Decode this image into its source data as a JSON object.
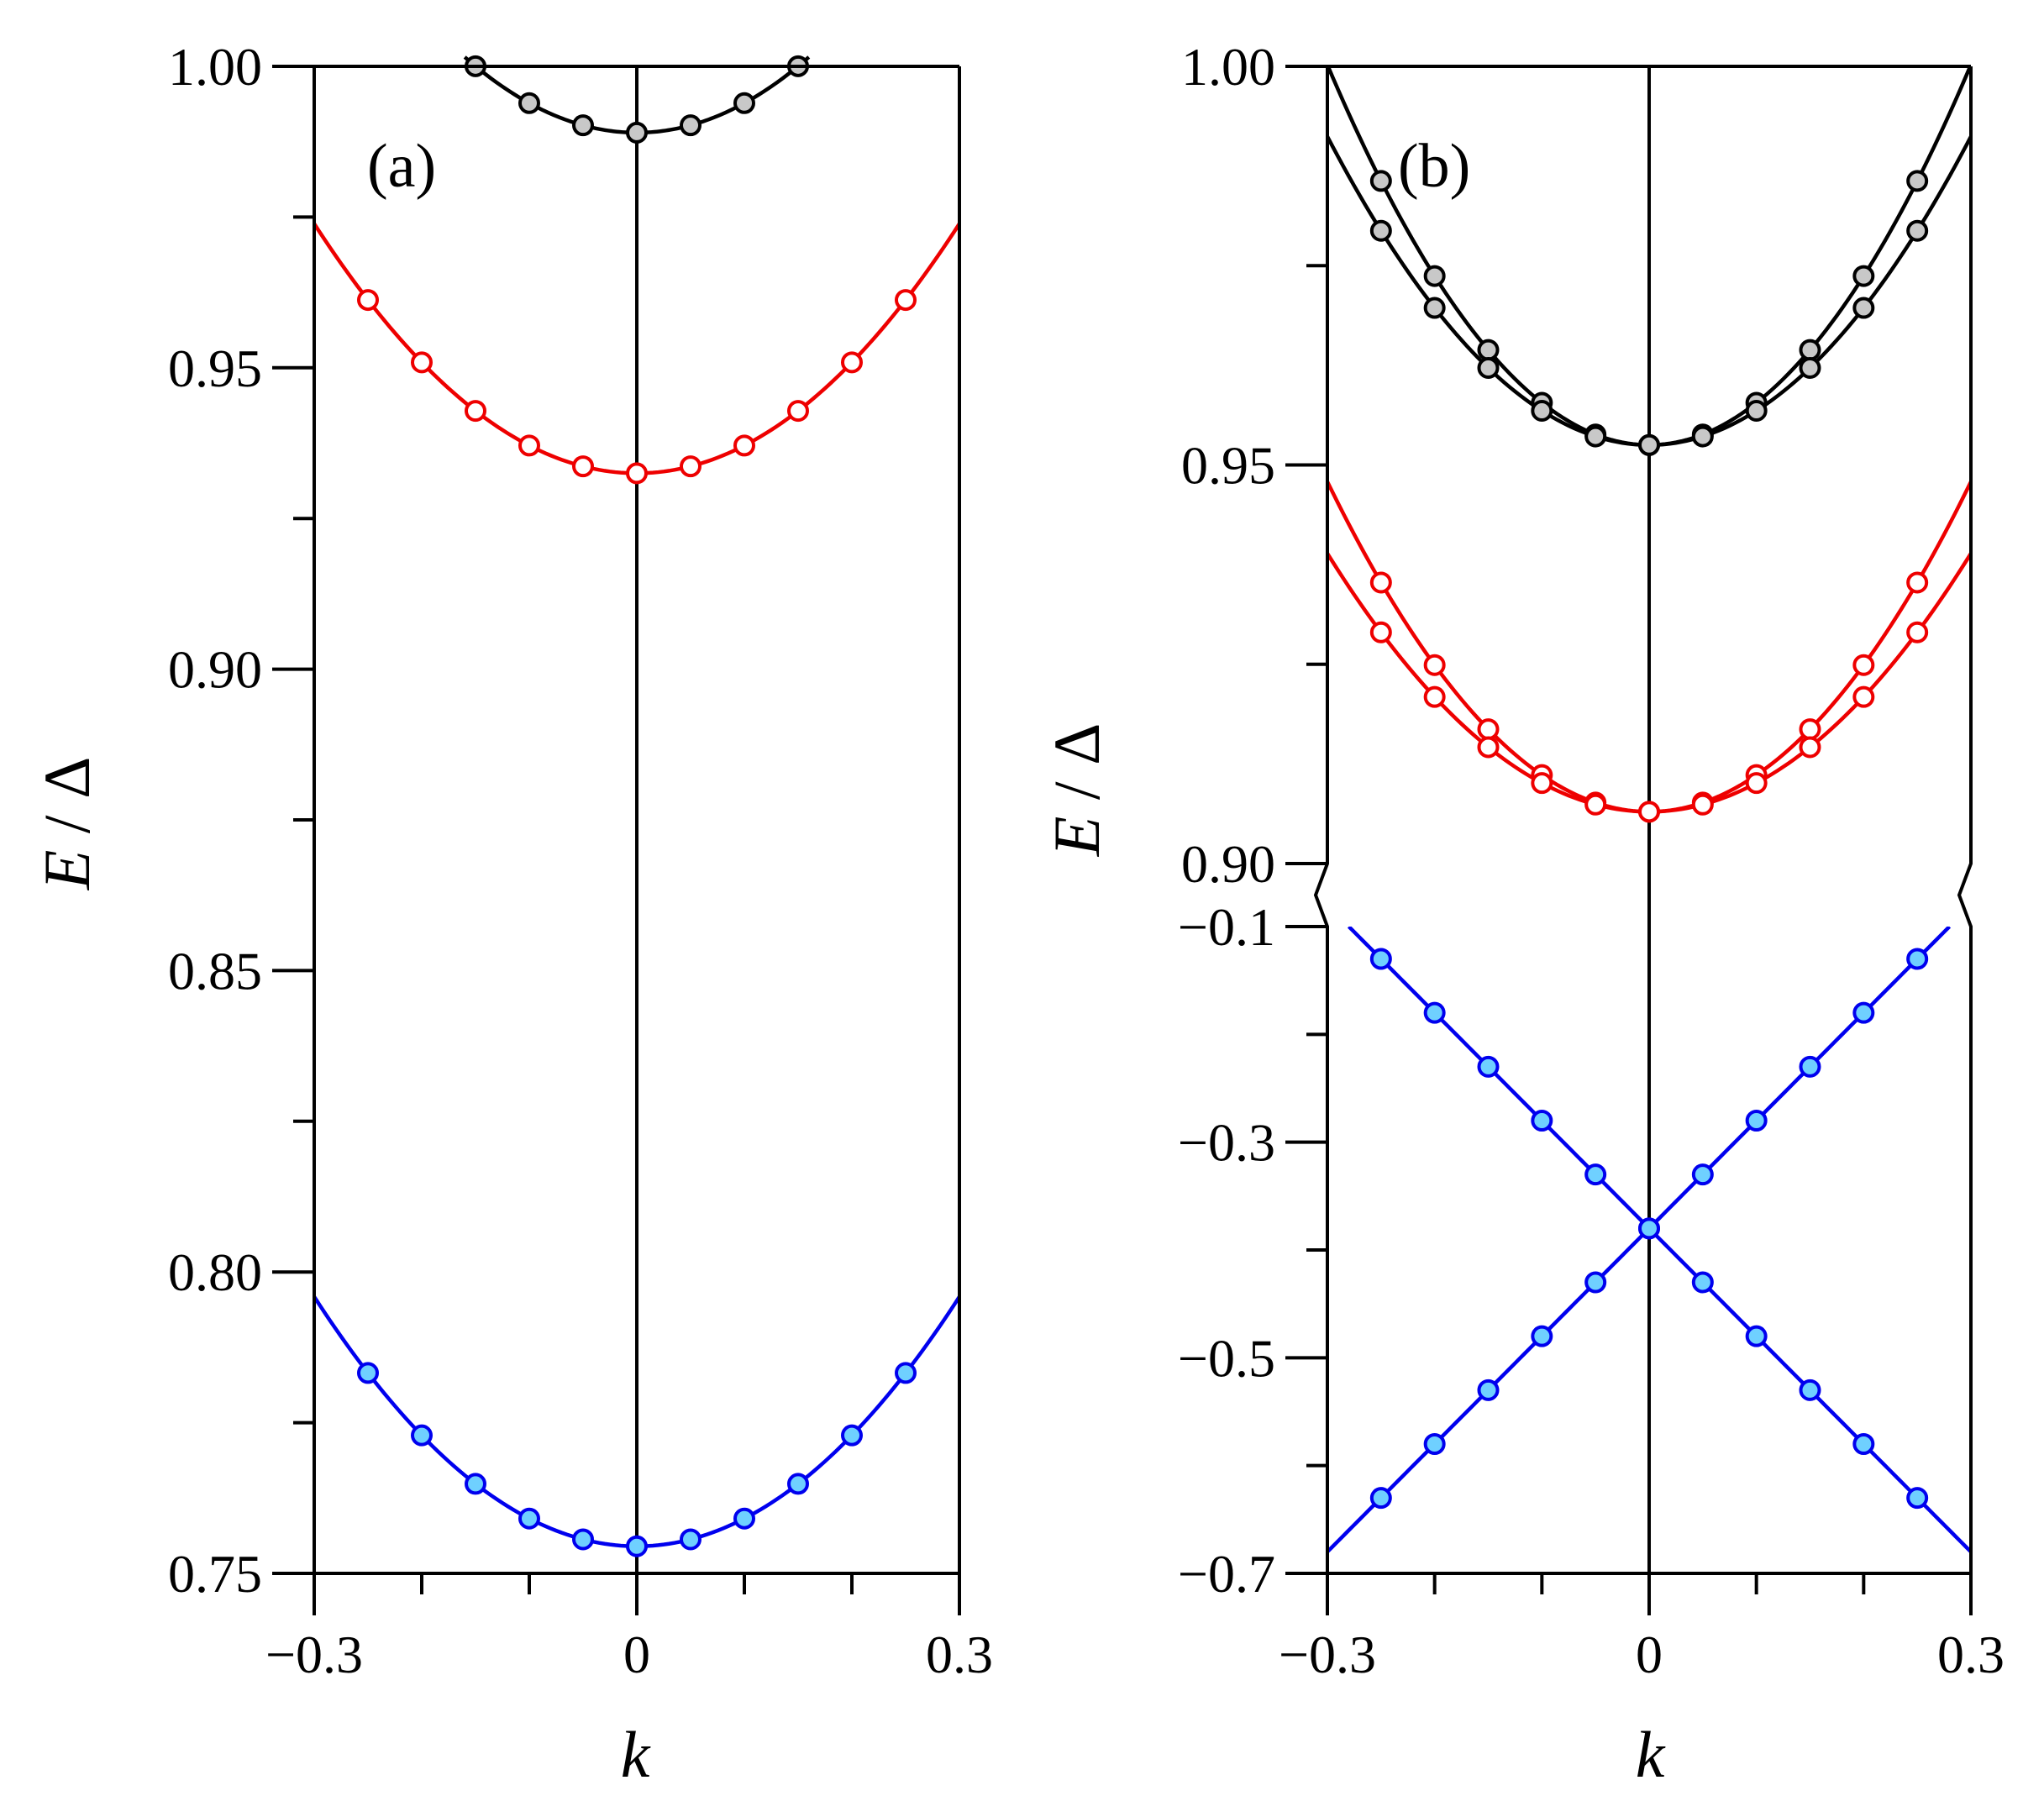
{
  "chart_data": [
    {
      "type": "line",
      "panel_label": "(a)",
      "xlabel": "k",
      "ylabel_italic": "E",
      "ylabel_rest": " / Δ",
      "xlim": [
        -0.3,
        0.3
      ],
      "ylim": [
        0.75,
        1.0
      ],
      "x_ticks": [
        {
          "value": -0.3,
          "label": "−0.3"
        },
        {
          "value": 0,
          "label": "0"
        },
        {
          "value": 0.3,
          "label": "0.3"
        }
      ],
      "x_minor_ticks": [
        -0.2,
        -0.1,
        0.1,
        0.2
      ],
      "y_ticks": [
        {
          "value": 1.0,
          "label": "1.00"
        },
        {
          "value": 0.95,
          "label": "0.95"
        },
        {
          "value": 0.9,
          "label": "0.90"
        },
        {
          "value": 0.85,
          "label": "0.85"
        },
        {
          "value": 0.8,
          "label": "0.80"
        },
        {
          "value": 0.75,
          "label": "0.75"
        }
      ],
      "y_minor_ticks": [
        0.975,
        0.925,
        0.875,
        0.825,
        0.775
      ],
      "series": [
        {
          "name": "black",
          "color": "#000000",
          "marker_fill": "#c8c8c8",
          "a": 0.989,
          "b": 0.49,
          "c": 0,
          "curve_range": [
            -0.16,
            0.16
          ],
          "marker_x": [
            -0.15,
            -0.1,
            -0.05,
            0,
            0.05,
            0.1,
            0.15
          ]
        },
        {
          "name": "red",
          "color": "#ee0000",
          "marker_fill": "#ffffff",
          "a": 0.9325,
          "b": 0.46,
          "c": 0,
          "curve_range": [
            -0.3,
            0.3
          ],
          "marker_x": [
            -0.25,
            -0.2,
            -0.15,
            -0.1,
            -0.05,
            0,
            0.05,
            0.1,
            0.15,
            0.2,
            0.25
          ]
        },
        {
          "name": "blue",
          "color": "#0000ee",
          "marker_fill": "#6fd0ff",
          "a": 0.7545,
          "b": 0.46,
          "c": 0,
          "curve_range": [
            -0.3,
            0.3
          ],
          "marker_x": [
            -0.25,
            -0.2,
            -0.15,
            -0.1,
            -0.05,
            0,
            0.05,
            0.1,
            0.15,
            0.2,
            0.25
          ]
        }
      ]
    },
    {
      "type": "line",
      "panel_label": "(b)",
      "xlabel": "k",
      "ylabel_italic": "E",
      "ylabel_rest": " / Δ",
      "xlim": [
        -0.3,
        0.3
      ],
      "broken_y_axis": true,
      "upper_ylim": [
        0.9,
        1.0
      ],
      "lower_ylim": [
        -0.7,
        -0.1
      ],
      "x_ticks": [
        {
          "value": -0.3,
          "label": "−0.3"
        },
        {
          "value": 0,
          "label": "0"
        },
        {
          "value": 0.3,
          "label": "0.3"
        }
      ],
      "x_minor_ticks": [
        -0.2,
        -0.1,
        0.1,
        0.2
      ],
      "upper_y_ticks": [
        {
          "value": 1.0,
          "label": "1.00"
        },
        {
          "value": 0.95,
          "label": "0.95"
        },
        {
          "value": 0.9,
          "label": "0.90"
        }
      ],
      "upper_y_minor_ticks": [
        0.975,
        0.925
      ],
      "lower_y_ticks": [
        {
          "value": -0.1,
          "label": "−0.1"
        },
        {
          "value": -0.3,
          "label": "−0.3"
        },
        {
          "value": -0.5,
          "label": "−0.5"
        },
        {
          "value": -0.7,
          "label": "−0.7"
        }
      ],
      "lower_y_minor_ticks": [
        -0.2,
        -0.4,
        -0.6
      ],
      "series": [
        {
          "name": "black-outer",
          "color": "#000000",
          "marker_fill": "#c8c8c8",
          "axis": "upper",
          "a": 0.9525,
          "b": 0.53,
          "c": 0,
          "curve_range": [
            -0.3,
            0.3
          ],
          "marker_x": [
            -0.25,
            -0.2,
            -0.15,
            -0.1,
            -0.05,
            0,
            0.05,
            0.1,
            0.15,
            0.2,
            0.25
          ]
        },
        {
          "name": "black-inner",
          "color": "#000000",
          "marker_fill": "#c8c8c8",
          "axis": "upper",
          "a": 0.9525,
          "b": 0.43,
          "c": 0,
          "curve_range": [
            -0.3,
            0.3
          ],
          "marker_x": [
            -0.25,
            -0.2,
            -0.15,
            -0.1,
            -0.05,
            0,
            0.05,
            0.1,
            0.15,
            0.2,
            0.25
          ]
        },
        {
          "name": "red-outer",
          "color": "#ee0000",
          "marker_fill": "#ffffff",
          "axis": "upper",
          "a": 0.9065,
          "b": 0.46,
          "c": 0,
          "curve_range": [
            -0.3,
            0.3
          ],
          "marker_x": [
            -0.25,
            -0.2,
            -0.15,
            -0.1,
            -0.05,
            0,
            0.05,
            0.1,
            0.15,
            0.2,
            0.25
          ]
        },
        {
          "name": "red-inner",
          "color": "#ee0000",
          "marker_fill": "#ffffff",
          "axis": "upper",
          "a": 0.9065,
          "b": 0.36,
          "c": 0,
          "curve_range": [
            -0.3,
            0.3
          ],
          "marker_x": [
            -0.25,
            -0.2,
            -0.15,
            -0.1,
            -0.05,
            0,
            0.05,
            0.1,
            0.15,
            0.2,
            0.25
          ]
        },
        {
          "name": "blue-rising",
          "color": "#0000ee",
          "marker_fill": "#6fd0ff",
          "axis": "lower",
          "a": -0.38,
          "b": 0,
          "c": 1.0,
          "curve_range": [
            -0.3,
            0.28
          ],
          "marker_x": [
            -0.25,
            -0.2,
            -0.15,
            -0.1,
            -0.05,
            0,
            0.05,
            0.1,
            0.15,
            0.2,
            0.25
          ]
        },
        {
          "name": "blue-falling",
          "color": "#0000ee",
          "marker_fill": "#6fd0ff",
          "axis": "lower",
          "a": -0.38,
          "b": 0,
          "c": -1.0,
          "curve_range": [
            -0.28,
            0.3
          ],
          "marker_x": [
            -0.25,
            -0.2,
            -0.15,
            -0.1,
            -0.05,
            0,
            0.05,
            0.1,
            0.15,
            0.2,
            0.25
          ]
        }
      ]
    }
  ]
}
